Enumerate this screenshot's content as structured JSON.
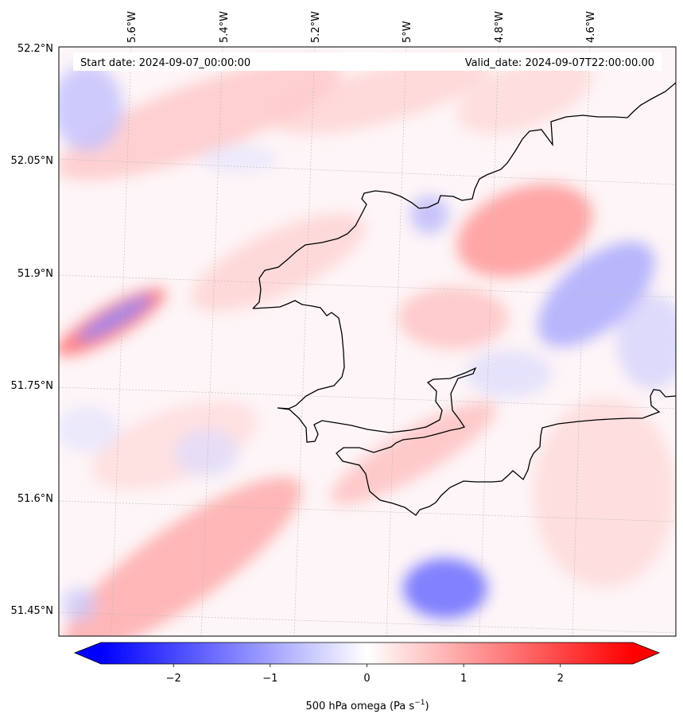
{
  "header": {
    "start_date": "Start date: 2024-09-07_00:00:00",
    "valid_date": "Valid_date: 2024-09-07T22:00:00.00"
  },
  "map": {
    "longitude_ticks": [
      "5.6°W",
      "5.4°W",
      "5.2°W",
      "5°W",
      "4.8°W",
      "4.6°W"
    ],
    "latitude_ticks": [
      "52.2°N",
      "52.05°N",
      "51.9°N",
      "51.75°N",
      "51.6°N",
      "51.45°N"
    ],
    "extent": {
      "lon_min": -5.75,
      "lon_max": -4.45,
      "lat_min": 51.42,
      "lat_max": 52.2
    },
    "field": "500 hPa omega",
    "features": [
      {
        "kind": "ascent-blob",
        "sign": "blue",
        "lon": -5.62,
        "lat": 51.83,
        "strength": 1.0
      },
      {
        "kind": "subsidence-band",
        "sign": "red",
        "lon": -5.6,
        "lat": 51.84,
        "strength": 1.3
      },
      {
        "kind": "ascent-blob",
        "sign": "blue",
        "lon": -4.88,
        "lat": 51.5,
        "strength": 1.6
      },
      {
        "kind": "ascent-blob",
        "sign": "blue",
        "lon": -4.55,
        "lat": 51.87,
        "strength": 1.1
      },
      {
        "kind": "subsidence-blob",
        "sign": "red",
        "lon": -4.8,
        "lat": 51.93,
        "strength": 1.3
      },
      {
        "kind": "subsidence-band",
        "sign": "red",
        "lon": -5.45,
        "lat": 51.5,
        "strength": 1.0
      }
    ]
  },
  "colorbar": {
    "label": "500 hPa omega (Pa s",
    "label_superscript": "−1",
    "label_suffix": ")",
    "min": -2.75,
    "max": 2.75,
    "ticks": [
      {
        "value": -2,
        "text": "−2"
      },
      {
        "value": -1,
        "text": "−1"
      },
      {
        "value": 0,
        "text": "0"
      },
      {
        "value": 1,
        "text": "1"
      },
      {
        "value": 2,
        "text": "2"
      }
    ],
    "extend": "both",
    "colors": {
      "low": "#0000ff",
      "mid": "#ffffff",
      "high": "#ff0000"
    }
  }
}
